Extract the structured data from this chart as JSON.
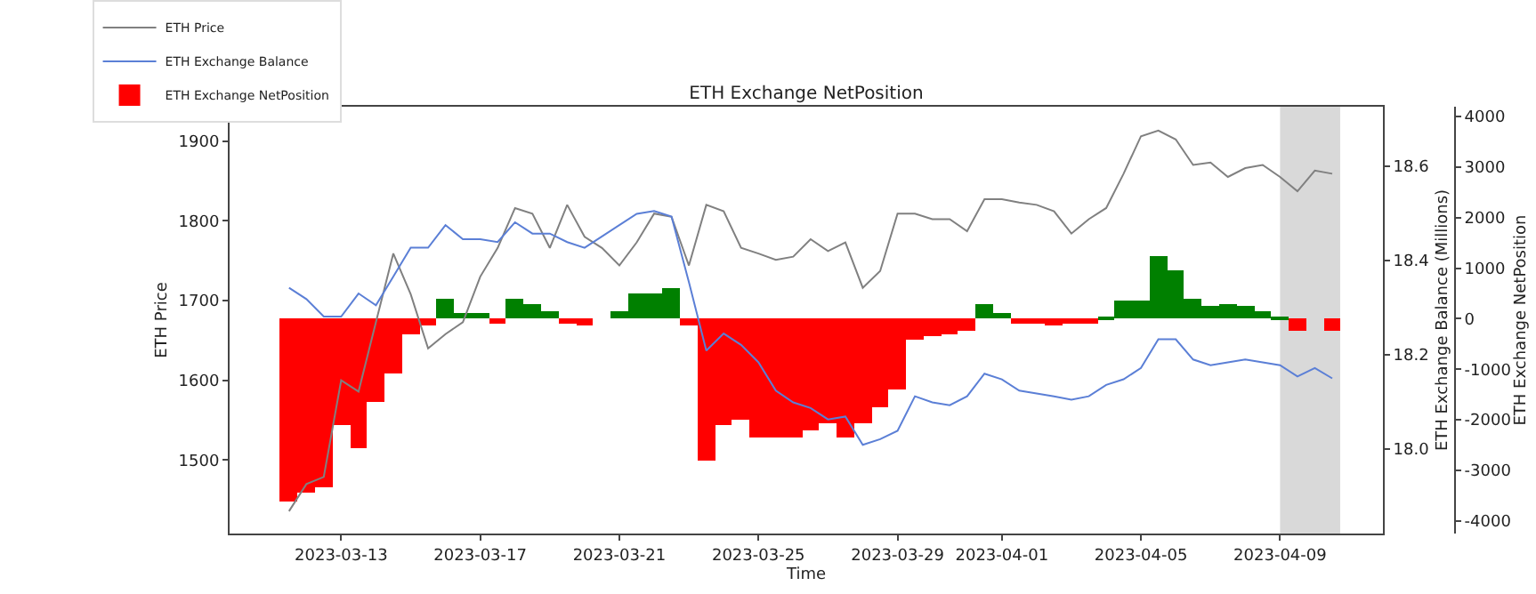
{
  "chart_data": {
    "type": "line",
    "title": "ETH Exchange NetPosition",
    "xlabel": "Time",
    "ylabel": "ETH Price",
    "y2label": "ETH Exchange Balance (Millions)",
    "y3label": "ETH Exchange NetPosition",
    "x": [
      "2023-03-11T12:00",
      "2023-03-12T00:00",
      "2023-03-12T12:00",
      "2023-03-13T00:00",
      "2023-03-13T12:00",
      "2023-03-14T00:00",
      "2023-03-14T12:00",
      "2023-03-15T00:00",
      "2023-03-15T12:00",
      "2023-03-16T00:00",
      "2023-03-16T12:00",
      "2023-03-17T00:00",
      "2023-03-17T12:00",
      "2023-03-18T00:00",
      "2023-03-18T12:00",
      "2023-03-19T00:00",
      "2023-03-19T12:00",
      "2023-03-20T00:00",
      "2023-03-20T12:00",
      "2023-03-21T00:00",
      "2023-03-21T12:00",
      "2023-03-22T00:00",
      "2023-03-22T12:00",
      "2023-03-23T00:00",
      "2023-03-23T12:00",
      "2023-03-24T00:00",
      "2023-03-24T12:00",
      "2023-03-25T00:00",
      "2023-03-25T12:00",
      "2023-03-26T00:00",
      "2023-03-26T12:00",
      "2023-03-27T00:00",
      "2023-03-27T12:00",
      "2023-03-28T00:00",
      "2023-03-28T12:00",
      "2023-03-29T00:00",
      "2023-03-29T12:00",
      "2023-03-30T00:00",
      "2023-03-30T12:00",
      "2023-03-31T00:00",
      "2023-03-31T12:00",
      "2023-04-01T00:00",
      "2023-04-01T12:00",
      "2023-04-02T00:00",
      "2023-04-02T12:00",
      "2023-04-03T00:00",
      "2023-04-03T12:00",
      "2023-04-04T00:00",
      "2023-04-04T12:00",
      "2023-04-05T00:00",
      "2023-04-05T12:00",
      "2023-04-06T00:00",
      "2023-04-06T12:00",
      "2023-04-07T00:00",
      "2023-04-07T12:00",
      "2023-04-08T00:00",
      "2023-04-08T12:00",
      "2023-04-09T00:00",
      "2023-04-09T12:00",
      "2023-04-10T00:00",
      "2023-04-10T12:00"
    ],
    "series": [
      {
        "name": "ETH Price",
        "color": "#808080",
        "values": [
          1436,
          1470,
          1479,
          1600,
          1586,
          1673,
          1759,
          1708,
          1640,
          1658,
          1673,
          1730,
          1766,
          1816,
          1809,
          1766,
          1820,
          1780,
          1766,
          1744,
          1773,
          1809,
          1805,
          1744,
          1820,
          1812,
          1766,
          1759,
          1751,
          1755,
          1777,
          1762,
          1773,
          1716,
          1737,
          1809,
          1809,
          1802,
          1802,
          1787,
          1827,
          1827,
          1823,
          1820,
          1812,
          1784,
          1802,
          1816,
          1859,
          1906,
          1913,
          1902,
          1870,
          1873,
          1855,
          1866,
          1870,
          1855,
          1837,
          1863,
          1859
        ]
      },
      {
        "name": "ETH Exchange Balance",
        "axis": "y2",
        "color": "#5b7fd6",
        "values": [
          18.342,
          18.318,
          18.281,
          18.281,
          18.33,
          18.305,
          18.366,
          18.427,
          18.427,
          18.475,
          18.445,
          18.445,
          18.439,
          18.481,
          18.457,
          18.457,
          18.439,
          18.427,
          18.451,
          18.475,
          18.499,
          18.505,
          18.493,
          18.354,
          18.209,
          18.245,
          18.221,
          18.184,
          18.124,
          18.099,
          18.087,
          18.063,
          18.069,
          18.009,
          18.021,
          18.039,
          18.112,
          18.099,
          18.093,
          18.112,
          18.16,
          18.148,
          18.124,
          18.118,
          18.112,
          18.105,
          18.112,
          18.136,
          18.148,
          18.172,
          18.233,
          18.233,
          18.19,
          18.178,
          18.184,
          18.19,
          18.184,
          18.178,
          18.154,
          18.172,
          18.15
        ]
      },
      {
        "name": "ETH Exchange NetPosition",
        "type": "bar",
        "axis": "y3",
        "colors": [
          "#ff0000",
          "#ff0000",
          "#ff0000",
          "#ff0000",
          "#ff0000",
          "#ff0000",
          "#ff0000",
          "#ff0000",
          "#ff0000",
          "#008000",
          "#008000",
          "#008000",
          "#ff0000",
          "#008000",
          "#008000",
          "#008000",
          "#ff0000",
          "#ff0000",
          "#008000",
          "#008000",
          "#008000",
          "#008000",
          "#008000",
          "#ff0000",
          "#ff0000",
          "#ff0000",
          "#ff0000",
          "#ff0000",
          "#ff0000",
          "#ff0000",
          "#ff0000",
          "#ff0000",
          "#ff0000",
          "#ff0000",
          "#ff0000",
          "#ff0000",
          "#ff0000",
          "#ff0000",
          "#ff0000",
          "#ff0000",
          "#008000",
          "#008000",
          "#ff0000",
          "#ff0000",
          "#ff0000",
          "#ff0000",
          "#ff0000",
          "#008000",
          "#008000",
          "#008000",
          "#008000",
          "#008000",
          "#008000",
          "#008000",
          "#008000",
          "#008000",
          "#008000",
          "#008000",
          "#ff0000",
          "#008000",
          "#ff0000"
        ],
        "values": [
          -3600,
          -3450,
          -3350,
          -2100,
          -2550,
          -1650,
          -1100,
          -300,
          -150,
          400,
          100,
          100,
          -100,
          400,
          300,
          150,
          -100,
          -150,
          0,
          150,
          500,
          500,
          600,
          -150,
          -2800,
          -2100,
          -2000,
          -2350,
          -2350,
          -2350,
          -2200,
          -2050,
          -2350,
          -2050,
          -1750,
          -1400,
          -400,
          -350,
          -300,
          -250,
          300,
          100,
          -100,
          -100,
          -150,
          -100,
          -100,
          50,
          350,
          350,
          1250,
          950,
          400,
          250,
          300,
          250,
          150,
          50,
          -250,
          0,
          -250
        ]
      }
    ],
    "xlim": [
      "2023-03-09T19:00",
      "2023-04-11T23:00"
    ],
    "xticks": [
      "2023-03-13",
      "2023-03-17",
      "2023-03-21",
      "2023-03-25",
      "2023-03-29",
      "2023-04-01",
      "2023-04-05",
      "2023-04-09"
    ],
    "ylim": [
      1408,
      1943
    ],
    "yticks": [
      1500,
      1600,
      1700,
      1800,
      1900
    ],
    "y2lim": [
      17.821,
      18.726
    ],
    "y2ticks": [
      {
        "value": 18.0,
        "label": "18.0"
      },
      {
        "value": 18.2,
        "label": "18.2"
      },
      {
        "value": 18.4,
        "label": "18.4"
      },
      {
        "value": 18.6,
        "label": "18.6"
      }
    ],
    "y3lim": [
      -4248,
      4193
    ],
    "y3ticks": [
      -4000,
      -3000,
      -2000,
      -1000,
      0,
      1000,
      2000,
      3000,
      4000
    ],
    "bands": [
      {
        "axis": "x",
        "from": "2023-04-09",
        "to": "2023-04-10T17:30",
        "color": "#d9d9d9"
      }
    ],
    "legend": "top left",
    "grid": false,
    "marker": "none",
    "line_style": "solid"
  }
}
